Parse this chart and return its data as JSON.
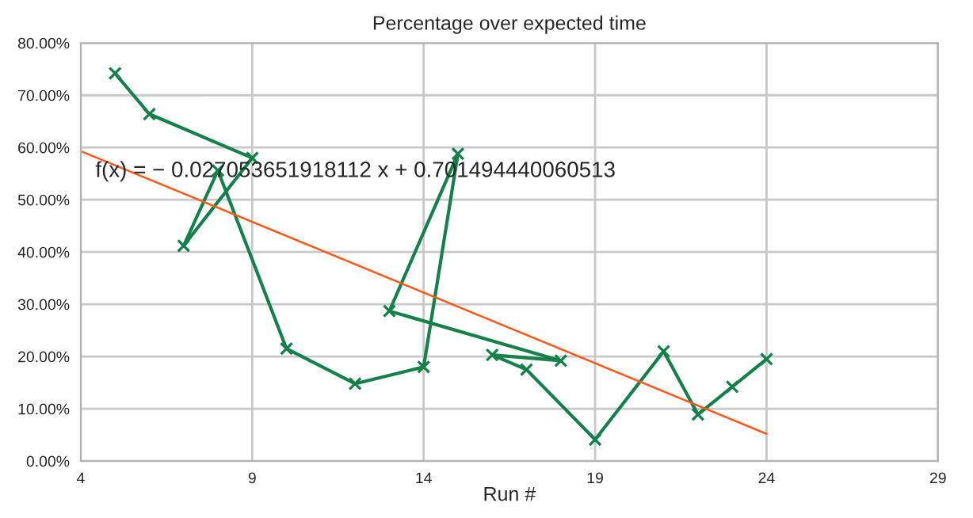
{
  "chart_data": {
    "type": "line",
    "title": "Percentage over expected time",
    "xlabel": "Run #",
    "xlim": [
      4,
      29
    ],
    "xticks": [
      4,
      9,
      14,
      19,
      24,
      29
    ],
    "ylim": [
      0,
      80
    ],
    "yticks": [
      {
        "value": 0,
        "label": "0.00%"
      },
      {
        "value": 10,
        "label": "10.00%"
      },
      {
        "value": 20,
        "label": "20.00%"
      },
      {
        "value": 30,
        "label": "30.00%"
      },
      {
        "value": 40,
        "label": "40.00%"
      },
      {
        "value": 50,
        "label": "50.00%"
      },
      {
        "value": 60,
        "label": "60.00%"
      },
      {
        "value": 70,
        "label": "70.00%"
      },
      {
        "value": 80,
        "label": "80.00%"
      }
    ],
    "grid": true,
    "marker": "cross",
    "line_style": "solid",
    "series": [
      {
        "color": "#14804a",
        "x": [
          5,
          6,
          9,
          7,
          8,
          10,
          12,
          14,
          15,
          13,
          18,
          16,
          17,
          19,
          21,
          22,
          23,
          24
        ],
        "values": [
          74.2,
          66.4,
          58.0,
          41.2,
          55.6,
          21.5,
          14.8,
          18.0,
          58.8,
          28.7,
          19.2,
          20.3,
          17.5,
          4.1,
          21.0,
          8.9,
          14.2,
          19.5
        ]
      },
      {
        "color": "#ff5a1a",
        "marker": "none",
        "x": [
          4,
          24
        ],
        "values": [
          59.3,
          5.2
        ]
      }
    ],
    "annotations": [
      "f(x) = − 0.027053651918112 x + 0.701494440060513"
    ]
  }
}
